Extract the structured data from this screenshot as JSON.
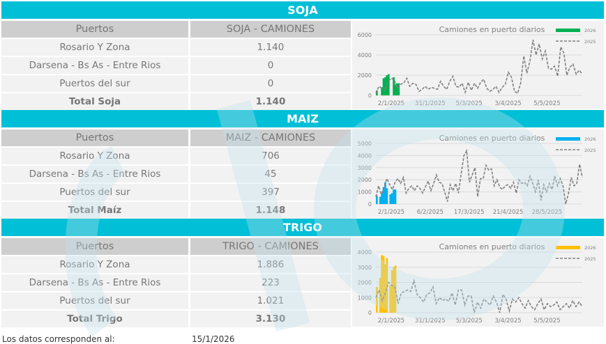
{
  "sections": [
    {
      "title": "SOJA",
      "col_header_1": "Puertos",
      "col_header_2": "SOJA - CAMIONES",
      "rows": [
        {
          "label": "Rosario Y Zona",
          "value": "1.140"
        },
        {
          "label": "Darsena - Bs As - Entre Rios",
          "value": "0"
        },
        {
          "label": "Puertos del sur",
          "value": "0"
        }
      ],
      "total_label": "Total Soja",
      "total_value": "1.140"
    },
    {
      "title": "MAIZ",
      "col_header_1": "Puertos",
      "col_header_2": "MAIZ - CAMIONES",
      "rows": [
        {
          "label": "Rosario Y Zona",
          "value": "706"
        },
        {
          "label": "Darsena - Bs As - Entre Rios",
          "value": "45"
        },
        {
          "label": "Puertos del sur",
          "value": "397"
        }
      ],
      "total_label": "Total Maíz",
      "total_value": "1.148"
    },
    {
      "title": "TRIGO",
      "col_header_1": "Puertos",
      "col_header_2": "TRIGO - CAMIONES",
      "rows": [
        {
          "label": "Rosario Y Zona",
          "value": "1.886"
        },
        {
          "label": "Darsena - Bs As - Entre Rios",
          "value": "223"
        },
        {
          "label": "Puertos del sur",
          "value": "1.021"
        }
      ],
      "total_label": "Total Trigo",
      "total_value": "3.130"
    }
  ],
  "footer": {
    "label": "Los datos corresponden al:",
    "date": "15/1/2026"
  },
  "chart_data": [
    {
      "type": "bar+line",
      "title": "Camiones en puerto diarios",
      "ylim": [
        0,
        6000
      ],
      "yticks": [
        0,
        2000,
        4000,
        6000
      ],
      "xticks": [
        "2/1/2025",
        "31/1/2025",
        "5/3/2025",
        "3/4/2025",
        "5/5/2025"
      ],
      "grid": true,
      "legend": "top-right",
      "series": [
        {
          "name": "2026",
          "type": "bar",
          "color": "#00b050",
          "values": [
            500,
            0,
            0,
            800,
            1700,
            1800,
            2000,
            2100,
            0,
            0,
            1800,
            1100,
            1200,
            1200
          ]
        },
        {
          "name": "2025",
          "type": "dashed-line",
          "color": "#7f7f7f",
          "values": [
            200,
            900,
            700,
            500,
            1400,
            1700,
            1500,
            700,
            1100,
            1200,
            1700,
            900,
            1200,
            1100,
            400,
            600,
            900,
            600,
            800,
            700,
            600,
            1400,
            900,
            600,
            1400,
            1900,
            900,
            800,
            1200,
            300,
            1300,
            500,
            1200,
            700,
            1300,
            1600,
            700,
            400,
            600,
            900,
            300,
            800,
            1100,
            2300,
            1800,
            400,
            200,
            1200,
            3900,
            2200,
            3400,
            5500,
            4000,
            5100,
            3600,
            4400,
            2700,
            2600,
            2900,
            1900,
            4800,
            4200,
            2000,
            2800,
            3100,
            2100,
            2500,
            2100
          ]
        }
      ]
    },
    {
      "type": "bar+line",
      "title": "Camiones en puerto diarios",
      "ylim": [
        0,
        5000
      ],
      "yticks": [
        0,
        1000,
        2000,
        3000,
        4000,
        5000
      ],
      "xticks": [
        "2/1/2025",
        "6/2/2025",
        "17/3/2025",
        "21/4/2025",
        "28/5/2025"
      ],
      "grid": true,
      "legend": "top-right",
      "series": [
        {
          "name": "2026",
          "type": "bar",
          "color": "#00b0f0",
          "values": [
            700,
            0,
            600,
            900,
            1400,
            1800,
            1300,
            0,
            800,
            900,
            1200,
            1200
          ]
        },
        {
          "name": "2025",
          "type": "dashed-line",
          "color": "#7f7f7f",
          "values": [
            600,
            1500,
            800,
            1400,
            2100,
            1600,
            1200,
            1800,
            2100,
            1700,
            2200,
            900,
            1300,
            1500,
            1100,
            1500,
            1300,
            900,
            1400,
            1900,
            1100,
            1700,
            2400,
            1800,
            1700,
            1000,
            200,
            1600,
            1100,
            1700,
            900,
            2500,
            4000,
            4400,
            1800,
            2400,
            3000,
            600,
            2100,
            2100,
            3200,
            2800,
            2900,
            1500,
            2000,
            1400,
            1200,
            1500,
            1600,
            1300,
            1800,
            900,
            2000,
            1700,
            1800,
            1500,
            2300,
            1700,
            1000,
            2000,
            300,
            1600,
            1000,
            1700,
            1200,
            2300,
            1500,
            2100,
            1500,
            0,
            900,
            2200,
            1500,
            1700,
            3300,
            2200
          ]
        }
      ]
    },
    {
      "type": "bar+line",
      "title": "Camiones en puerto diarios",
      "ylim": [
        0,
        4000
      ],
      "yticks": [
        0,
        1000,
        2000,
        3000,
        4000
      ],
      "xticks": [
        "2/1/2025",
        "31/1/2025",
        "5/3/2025",
        "3/4/2025",
        "5/5/2025"
      ],
      "grid": true,
      "legend": "top-right",
      "series": [
        {
          "name": "2026",
          "type": "bar",
          "color": "#ffc000",
          "values": [
            1700,
            0,
            2300,
            3800,
            3750,
            3200,
            3600,
            0,
            1800,
            2800,
            3000,
            3100
          ]
        },
        {
          "name": "2025",
          "type": "dashed-line",
          "color": "#7f7f7f",
          "values": [
            1000,
            1500,
            800,
            1300,
            2000,
            1800,
            1700,
            600,
            1300,
            1400,
            1500,
            1400,
            2100,
            1200,
            1000,
            700,
            1200,
            1300,
            1700,
            600,
            1000,
            800,
            900,
            750,
            1300,
            500,
            1500,
            1500,
            500,
            1100,
            1100,
            0,
            700,
            300,
            900,
            700,
            500,
            1100,
            700,
            0,
            1200,
            900,
            100,
            900,
            700,
            1000,
            600,
            300,
            800,
            400,
            200,
            600,
            900,
            200,
            600,
            400,
            500,
            700,
            200,
            400,
            600,
            300,
            800,
            400,
            700,
            400
          ]
        }
      ]
    }
  ]
}
